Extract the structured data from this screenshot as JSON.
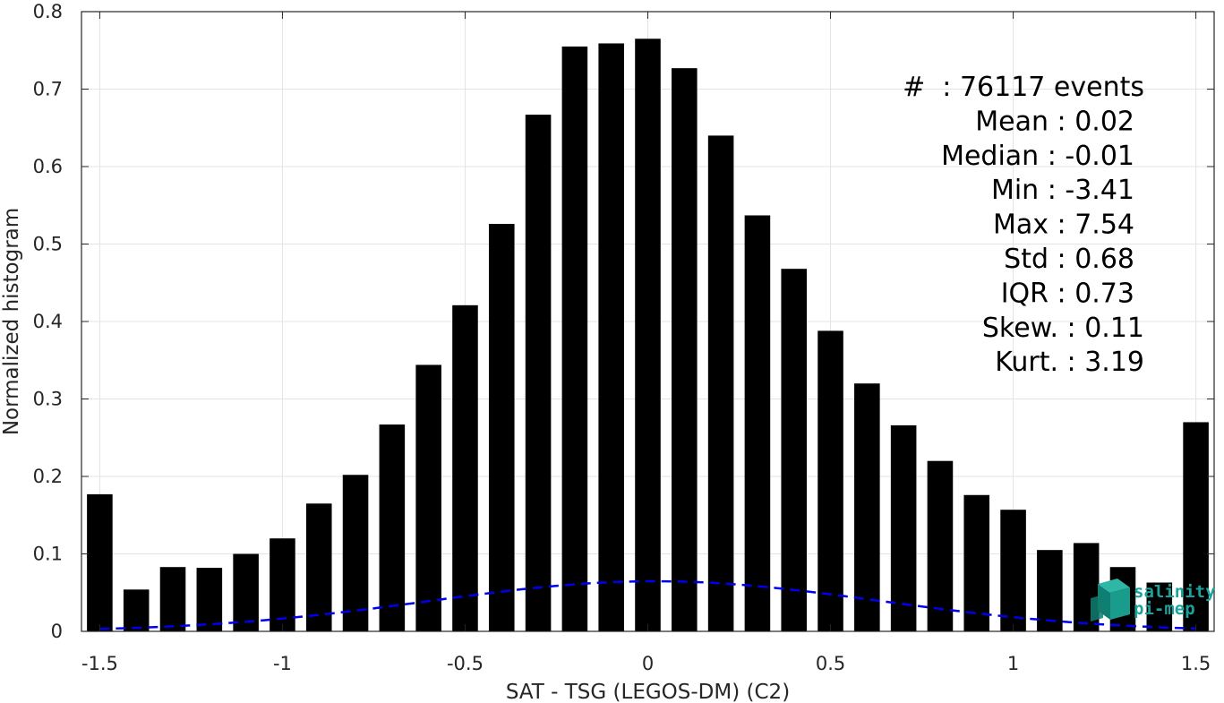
{
  "chart_data": {
    "type": "bar",
    "xlabel": "SAT - TSG (LEGOS-DM) (C2)",
    "ylabel": "Normalized histogram",
    "xlim": [
      -1.55,
      1.55
    ],
    "ylim": [
      0,
      0.8
    ],
    "xticks": [
      -1.5,
      -1,
      -0.5,
      0,
      0.5,
      1,
      1.5
    ],
    "xtick_labels": [
      "-1.5",
      "-1",
      "-0.5",
      "0",
      "0.5",
      "1",
      "1.5"
    ],
    "yticks": [
      0,
      0.1,
      0.2,
      0.3,
      0.4,
      0.5,
      0.6,
      0.7,
      0.8
    ],
    "ytick_labels": [
      "0",
      "0.1",
      "0.2",
      "0.3",
      "0.4",
      "0.5",
      "0.6",
      "0.7",
      "0.8"
    ],
    "grid": true,
    "bar_color": "#000000",
    "bars": {
      "x": [
        -1.5,
        -1.4,
        -1.3,
        -1.2,
        -1.1,
        -1.0,
        -0.9,
        -0.8,
        -0.7,
        -0.6,
        -0.5,
        -0.4,
        -0.3,
        -0.2,
        -0.1,
        0.0,
        0.1,
        0.2,
        0.3,
        0.4,
        0.5,
        0.6,
        0.7,
        0.8,
        0.9,
        1.0,
        1.1,
        1.2,
        1.3,
        1.4,
        1.5
      ],
      "values": [
        0.177,
        0.054,
        0.083,
        0.082,
        0.1,
        0.12,
        0.165,
        0.202,
        0.267,
        0.344,
        0.421,
        0.526,
        0.667,
        0.755,
        0.759,
        0.765,
        0.727,
        0.64,
        0.537,
        0.468,
        0.388,
        0.32,
        0.266,
        0.22,
        0.176,
        0.157,
        0.105,
        0.114,
        0.083,
        0.063,
        0.27
      ]
    },
    "fit_curve": {
      "style": "dashed",
      "color": "#0000ee",
      "mean": 0.02,
      "std": 0.617,
      "x_range": [
        -1.5,
        1.5
      ]
    },
    "annotations": [
      "#  : 76117 events",
      "Mean : 0.02",
      "Median : -0.01",
      "Min : -3.41",
      "Max : 7.54",
      "Std : 0.68",
      "IQR : 0.73",
      "Skew. : 0.11",
      "Kurt. : 3.19"
    ],
    "logo": {
      "line1": "salinity",
      "line2": "pi-mep",
      "color": "#1aa39b"
    }
  }
}
